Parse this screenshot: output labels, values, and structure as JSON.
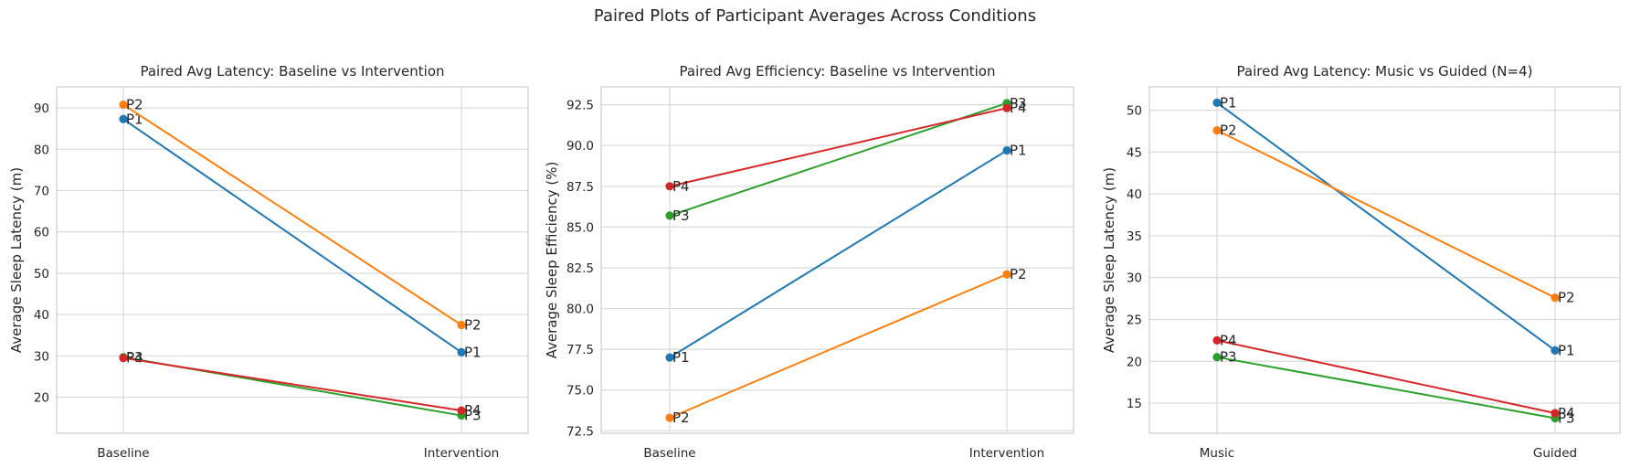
{
  "figure": {
    "title": "Paired Plots of Participant Averages Across Conditions"
  },
  "colors": {
    "P1": "#1f77b4",
    "P2": "#ff7f0e",
    "P3": "#2ca02c",
    "P4": "#d62728",
    "grid": "#d9d9d9",
    "frame": "#cccccc"
  },
  "chart_data": [
    {
      "type": "line",
      "title": "Paired Avg Latency: Baseline vs Intervention",
      "xlabel": "",
      "ylabel": "Average Sleep Latency (m)",
      "categories": [
        "Baseline",
        "Intervention"
      ],
      "ylim": [
        11.3,
        95.1
      ],
      "yticks": [
        20,
        30,
        40,
        50,
        60,
        70,
        80,
        90
      ],
      "ytick_labels": [
        "20",
        "30",
        "40",
        "50",
        "60",
        "70",
        "80",
        "90"
      ],
      "grid": true,
      "series": [
        {
          "name": "P1",
          "values": [
            87.3,
            30.9
          ]
        },
        {
          "name": "P2",
          "values": [
            90.8,
            37.5
          ]
        },
        {
          "name": "P3",
          "values": [
            29.7,
            15.6
          ]
        },
        {
          "name": "P4",
          "values": [
            29.5,
            16.8
          ]
        }
      ]
    },
    {
      "type": "line",
      "title": "Paired Avg Efficiency: Baseline vs Intervention",
      "xlabel": "",
      "ylabel": "Average Sleep Efficiency (%)",
      "categories": [
        "Baseline",
        "Intervention"
      ],
      "ylim": [
        72.35,
        93.6
      ],
      "yticks": [
        72.5,
        75.0,
        77.5,
        80.0,
        82.5,
        85.0,
        87.5,
        90.0,
        92.5
      ],
      "ytick_labels": [
        "72.5",
        "75.0",
        "77.5",
        "80.0",
        "82.5",
        "85.0",
        "87.5",
        "90.0",
        "92.5"
      ],
      "grid": true,
      "series": [
        {
          "name": "P1",
          "values": [
            77.0,
            89.7
          ]
        },
        {
          "name": "P2",
          "values": [
            73.3,
            82.1
          ]
        },
        {
          "name": "P3",
          "values": [
            85.7,
            92.6
          ]
        },
        {
          "name": "P4",
          "values": [
            87.5,
            92.3
          ]
        }
      ]
    },
    {
      "type": "line",
      "title": "Paired Avg Latency: Music vs Guided (N=4)",
      "xlabel": "",
      "ylabel": "Average Sleep Latency (m)",
      "categories": [
        "Music",
        "Guided"
      ],
      "ylim": [
        11.4,
        52.8
      ],
      "yticks": [
        15,
        20,
        25,
        30,
        35,
        40,
        45,
        50
      ],
      "ytick_labels": [
        "15",
        "20",
        "25",
        "30",
        "35",
        "40",
        "45",
        "50"
      ],
      "grid": true,
      "series": [
        {
          "name": "P1",
          "values": [
            50.9,
            21.3
          ]
        },
        {
          "name": "P2",
          "values": [
            47.6,
            27.6
          ]
        },
        {
          "name": "P3",
          "values": [
            20.5,
            13.2
          ]
        },
        {
          "name": "P4",
          "values": [
            22.5,
            13.8
          ]
        }
      ]
    }
  ]
}
